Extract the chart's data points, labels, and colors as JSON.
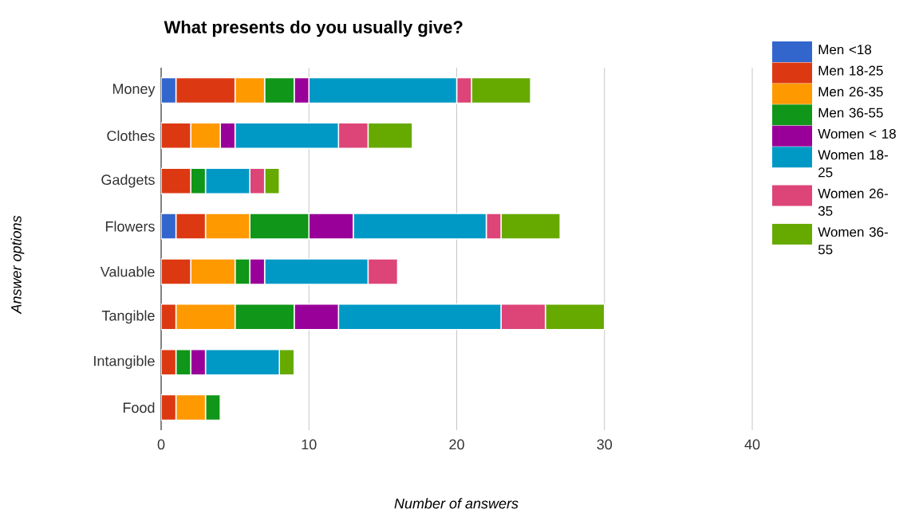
{
  "chart_data": {
    "type": "bar",
    "orientation": "horizontal",
    "stacked": true,
    "title": "What presents do you usually give?",
    "xlabel": "Number of answers",
    "ylabel": "Answer options",
    "categories": [
      "Money",
      "Clothes",
      "Gadgets",
      "Flowers",
      "Valuable",
      "Tangible",
      "Intangible",
      "Food"
    ],
    "series": [
      {
        "name": "Men <18",
        "color": "#3366cc",
        "values": [
          1,
          0,
          0,
          1,
          0,
          0,
          0,
          0
        ]
      },
      {
        "name": "Men 18-25",
        "color": "#dc3912",
        "values": [
          4,
          2,
          2,
          2,
          2,
          1,
          1,
          1
        ]
      },
      {
        "name": "Men 26-35",
        "color": "#ff9900",
        "values": [
          2,
          2,
          0,
          3,
          3,
          4,
          0,
          2
        ]
      },
      {
        "name": "Men 36-55",
        "color": "#109618",
        "values": [
          2,
          0,
          1,
          4,
          1,
          4,
          1,
          1
        ]
      },
      {
        "name": "Women < 18",
        "color": "#990099",
        "values": [
          1,
          1,
          0,
          3,
          1,
          3,
          1,
          0
        ]
      },
      {
        "name": "Women 18-25",
        "color": "#0099c6",
        "values": [
          10,
          7,
          3,
          9,
          7,
          11,
          5,
          0
        ]
      },
      {
        "name": "Women 26-35",
        "color": "#dd4477",
        "values": [
          1,
          2,
          1,
          1,
          2,
          3,
          0,
          0
        ]
      },
      {
        "name": "Women 36-55",
        "color": "#66aa00",
        "values": [
          4,
          3,
          1,
          4,
          0,
          4,
          1,
          0
        ]
      }
    ],
    "xlim": [
      0,
      40
    ],
    "xticks": [
      0,
      10,
      20,
      30,
      40
    ],
    "grid": "x",
    "legend": "top right"
  }
}
